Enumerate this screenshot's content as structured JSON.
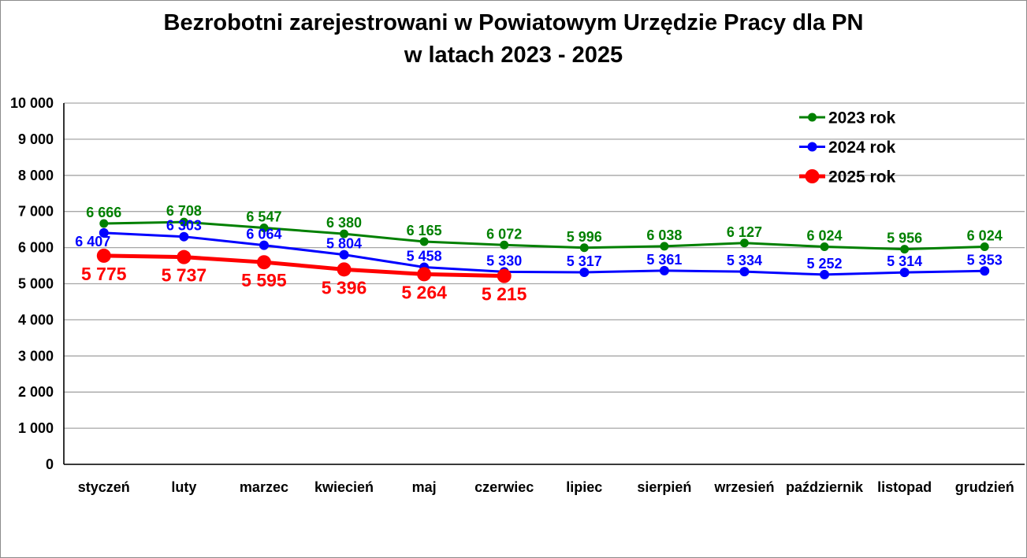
{
  "title": {
    "line1": "Bezrobotni zarejestrowani w Powiatowym Urzędzie Pracy dla PN",
    "line2": "w latach 2023 - 2025"
  },
  "chart_data": {
    "type": "line",
    "categories": [
      "styczeń",
      "luty",
      "marzec",
      "kwiecień",
      "maj",
      "czerwiec",
      "lipiec",
      "sierpień",
      "wrzesień",
      "październik",
      "listopad",
      "grudzień"
    ],
    "series": [
      {
        "name": "2023 rok",
        "color": "#008000",
        "values": [
          6666,
          6708,
          6547,
          6380,
          6165,
          6072,
          5996,
          6038,
          6127,
          6024,
          5956,
          6024
        ],
        "line_width": 3,
        "marker_radius": 5.5,
        "label_size": 18,
        "label_dy": -8,
        "label_overrides": {}
      },
      {
        "name": "2024 rok",
        "color": "#0000ff",
        "values": [
          6407,
          6303,
          6064,
          5804,
          5458,
          5330,
          5317,
          5361,
          5334,
          5252,
          5314,
          5353
        ],
        "line_width": 3,
        "marker_radius": 6,
        "label_size": 18,
        "label_dy": -8,
        "label_overrides": {
          "0": {
            "dx": -14,
            "dy": 17
          }
        }
      },
      {
        "name": "2025 rok",
        "color": "#ff0000",
        "values": [
          5775,
          5737,
          5595,
          5396,
          5264,
          5215
        ],
        "line_width": 5,
        "marker_radius": 9,
        "label_size": 23,
        "label_dy": 31,
        "label_overrides": {}
      }
    ],
    "ylim": [
      0,
      10000
    ],
    "ytick_step": 1000,
    "ytick_labels": [
      "0",
      "1 000",
      "2 000",
      "3 000",
      "4 000",
      "5 000",
      "6 000",
      "7 000",
      "8 000",
      "9 000",
      "10 000"
    ],
    "grid": true,
    "legend_position": "top-right",
    "axis_color": "#000000",
    "grid_color": "#a6a6a6",
    "label_color": "#000000"
  }
}
